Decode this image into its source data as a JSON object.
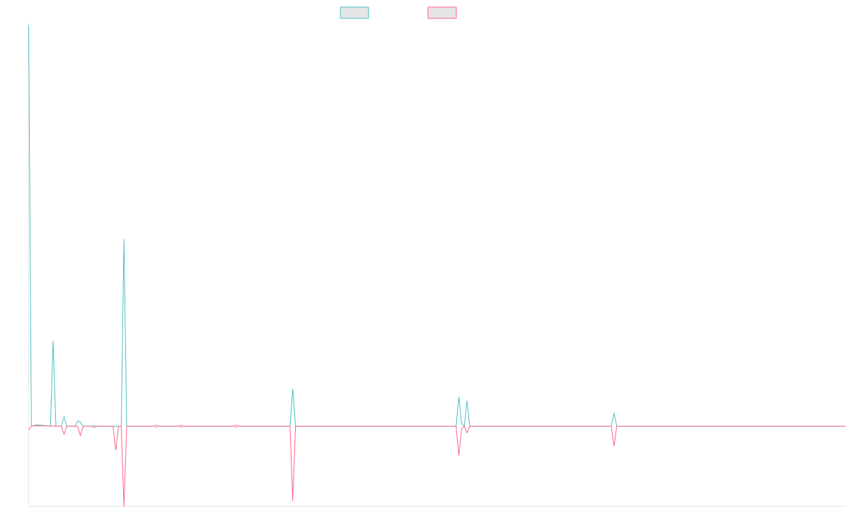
{
  "chart_data": {
    "type": "line",
    "title": "",
    "xlabel": "",
    "ylabel": "",
    "x_count": 301,
    "ylim": [
      -3.0,
      15.0
    ],
    "grid": false,
    "legend_placement": "top-center",
    "series": [
      {
        "color": "#4bc0c0",
        "points": [
          [
            0,
            15.0
          ],
          [
            1,
            0.0
          ],
          [
            3,
            0.05
          ],
          [
            8,
            0.0
          ],
          [
            9,
            3.2
          ],
          [
            10,
            0.0
          ],
          [
            12,
            0.0
          ],
          [
            13,
            0.35
          ],
          [
            14,
            0.0
          ],
          [
            17,
            0.0
          ],
          [
            18,
            0.2
          ],
          [
            19,
            0.15
          ],
          [
            20,
            0.0
          ],
          [
            23,
            0.0
          ],
          [
            24,
            0.02
          ],
          [
            25,
            0.0
          ],
          [
            34,
            0.0
          ],
          [
            35,
            7.0
          ],
          [
            36,
            0.0
          ],
          [
            96,
            0.0
          ],
          [
            97,
            1.4
          ],
          [
            98,
            0.0
          ],
          [
            157,
            0.0
          ],
          [
            158,
            1.1
          ],
          [
            159,
            0.1
          ],
          [
            160,
            0.0
          ],
          [
            161,
            0.95
          ],
          [
            162,
            0.0
          ],
          [
            214,
            0.0
          ],
          [
            215,
            0.5
          ],
          [
            216,
            0.0
          ],
          [
            300,
            0.0
          ]
        ]
      },
      {
        "color": "#ff6384",
        "points": [
          [
            0,
            -0.15
          ],
          [
            1,
            0.0
          ],
          [
            3,
            0.02
          ],
          [
            12,
            0.0
          ],
          [
            13,
            -0.3
          ],
          [
            14,
            0.0
          ],
          [
            18,
            0.0
          ],
          [
            19,
            -0.35
          ],
          [
            20,
            0.0
          ],
          [
            23,
            0.0
          ],
          [
            24,
            -0.05
          ],
          [
            25,
            0.0
          ],
          [
            31,
            0.0
          ],
          [
            32,
            -0.9
          ],
          [
            33,
            0.0
          ],
          [
            34,
            0.0
          ],
          [
            35,
            -3.0
          ],
          [
            36,
            0.0
          ],
          [
            96,
            0.0
          ],
          [
            97,
            -2.8
          ],
          [
            98,
            0.0
          ],
          [
            157,
            0.0
          ],
          [
            158,
            -1.1
          ],
          [
            159,
            -0.1
          ],
          [
            160,
            0.0
          ],
          [
            161,
            -0.25
          ],
          [
            162,
            0.0
          ],
          [
            214,
            0.0
          ],
          [
            215,
            -0.75
          ],
          [
            216,
            0.0
          ],
          [
            300,
            0.0
          ]
        ]
      }
    ],
    "markers": [
      47,
      56,
      76
    ]
  }
}
